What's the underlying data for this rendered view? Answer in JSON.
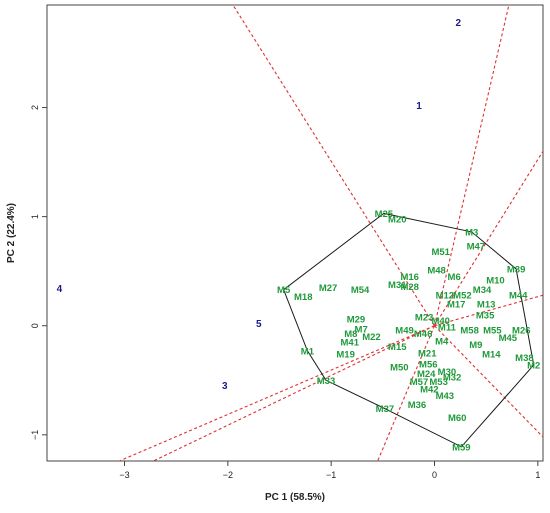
{
  "chart_data": {
    "type": "scatter",
    "title": "",
    "xlabel": "PC 1 (58.5%)",
    "ylabel": "PC 2 (22.4%)",
    "xlim": [
      -3.75,
      1.05
    ],
    "ylim": [
      -1.24,
      2.94
    ],
    "xticks": [
      -3,
      -2,
      -1,
      0,
      1
    ],
    "yticks": [
      -1,
      0,
      1,
      2
    ],
    "grid": false,
    "colors": {
      "genotype": "#1f9a3a",
      "environment": "#1a1a8c",
      "hull": "#1a1a1a",
      "rays": "#e03030"
    },
    "environments": [
      {
        "label": "1",
        "x": -0.15,
        "y": 2.02
      },
      {
        "label": "2",
        "x": 0.23,
        "y": 2.78
      },
      {
        "label": "3",
        "x": -2.03,
        "y": -0.55
      },
      {
        "label": "4",
        "x": -3.63,
        "y": 0.34
      },
      {
        "label": "5",
        "x": -1.7,
        "y": 0.02
      }
    ],
    "genotypes": [
      {
        "label": "M1",
        "x": -1.23,
        "y": -0.23
      },
      {
        "label": "M2",
        "x": 0.96,
        "y": -0.36
      },
      {
        "label": "M3",
        "x": 0.36,
        "y": 0.86
      },
      {
        "label": "M4",
        "x": 0.07,
        "y": -0.14
      },
      {
        "label": "M5",
        "x": -1.46,
        "y": 0.33
      },
      {
        "label": "M6",
        "x": 0.19,
        "y": 0.45
      },
      {
        "label": "M7",
        "x": -0.71,
        "y": -0.03
      },
      {
        "label": "M8",
        "x": -0.81,
        "y": -0.07
      },
      {
        "label": "M9",
        "x": 0.4,
        "y": -0.17
      },
      {
        "label": "M10",
        "x": 0.59,
        "y": 0.42
      },
      {
        "label": "M11",
        "x": 0.12,
        "y": -0.01
      },
      {
        "label": "M12",
        "x": 0.1,
        "y": 0.28
      },
      {
        "label": "M13",
        "x": 0.5,
        "y": 0.2
      },
      {
        "label": "M14",
        "x": 0.55,
        "y": -0.26
      },
      {
        "label": "M15",
        "x": -0.36,
        "y": -0.19
      },
      {
        "label": "M16",
        "x": -0.24,
        "y": 0.45
      },
      {
        "label": "M17",
        "x": 0.21,
        "y": 0.2
      },
      {
        "label": "M18",
        "x": -1.27,
        "y": 0.27
      },
      {
        "label": "M19",
        "x": -0.86,
        "y": -0.26
      },
      {
        "label": "M20",
        "x": -0.36,
        "y": 0.98
      },
      {
        "label": "M21",
        "x": -0.07,
        "y": -0.25
      },
      {
        "label": "M22",
        "x": -0.61,
        "y": -0.1
      },
      {
        "label": "M23",
        "x": -0.1,
        "y": 0.08
      },
      {
        "label": "M24",
        "x": -0.08,
        "y": -0.44
      },
      {
        "label": "M25",
        "x": -0.49,
        "y": 1.03
      },
      {
        "label": "M26",
        "x": 0.84,
        "y": -0.04
      },
      {
        "label": "M27",
        "x": -1.03,
        "y": 0.35
      },
      {
        "label": "M28",
        "x": -0.24,
        "y": 0.36
      },
      {
        "label": "M29",
        "x": -0.76,
        "y": 0.06
      },
      {
        "label": "M30",
        "x": 0.12,
        "y": -0.42
      },
      {
        "label": "M31",
        "x": -0.36,
        "y": 0.38
      },
      {
        "label": "M32",
        "x": 0.17,
        "y": -0.47
      },
      {
        "label": "M33",
        "x": -1.05,
        "y": -0.5
      },
      {
        "label": "M34",
        "x": 0.46,
        "y": 0.33
      },
      {
        "label": "M35",
        "x": 0.49,
        "y": 0.1
      },
      {
        "label": "M36",
        "x": -0.17,
        "y": -0.72
      },
      {
        "label": "M37",
        "x": -0.48,
        "y": -0.76
      },
      {
        "label": "M38",
        "x": 0.87,
        "y": -0.29
      },
      {
        "label": "M39",
        "x": 0.79,
        "y": 0.52
      },
      {
        "label": "M40",
        "x": 0.06,
        "y": 0.05
      },
      {
        "label": "M41",
        "x": -0.82,
        "y": -0.15
      },
      {
        "label": "M42",
        "x": -0.05,
        "y": -0.58
      },
      {
        "label": "M43",
        "x": 0.1,
        "y": -0.64
      },
      {
        "label": "M44",
        "x": 0.81,
        "y": 0.28
      },
      {
        "label": "M45",
        "x": 0.71,
        "y": -0.11
      },
      {
        "label": "M46",
        "x": -0.11,
        "y": -0.07
      },
      {
        "label": "M47",
        "x": 0.4,
        "y": 0.73
      },
      {
        "label": "M48",
        "x": 0.02,
        "y": 0.51
      },
      {
        "label": "M49",
        "x": -0.29,
        "y": -0.04
      },
      {
        "label": "M50",
        "x": -0.34,
        "y": -0.38
      },
      {
        "label": "M51",
        "x": 0.06,
        "y": 0.68
      },
      {
        "label": "M52",
        "x": 0.27,
        "y": 0.28
      },
      {
        "label": "M53",
        "x": 0.04,
        "y": -0.51
      },
      {
        "label": "M54",
        "x": -0.72,
        "y": 0.33
      },
      {
        "label": "M55",
        "x": 0.56,
        "y": -0.04
      },
      {
        "label": "M56",
        "x": -0.06,
        "y": -0.35
      },
      {
        "label": "M57",
        "x": -0.15,
        "y": -0.51
      },
      {
        "label": "M58",
        "x": 0.34,
        "y": -0.04
      },
      {
        "label": "M59",
        "x": 0.26,
        "y": -1.11
      },
      {
        "label": "M60",
        "x": 0.22,
        "y": -0.84
      }
    ],
    "hull": [
      "M25",
      "M3",
      "M39",
      "M2",
      "M59",
      "M37",
      "M33",
      "M1",
      "M5"
    ],
    "rays": [
      {
        "x": -1.95,
        "y": 2.94
      },
      {
        "x": 0.72,
        "y": 2.94
      },
      {
        "x": 1.05,
        "y": 1.6
      },
      {
        "x": 1.05,
        "y": 0.28
      },
      {
        "x": 1.05,
        "y": -1.02
      },
      {
        "x": -0.55,
        "y": -1.24
      },
      {
        "x": -2.72,
        "y": -1.24
      },
      {
        "x": -3.05,
        "y": -1.24
      }
    ]
  }
}
